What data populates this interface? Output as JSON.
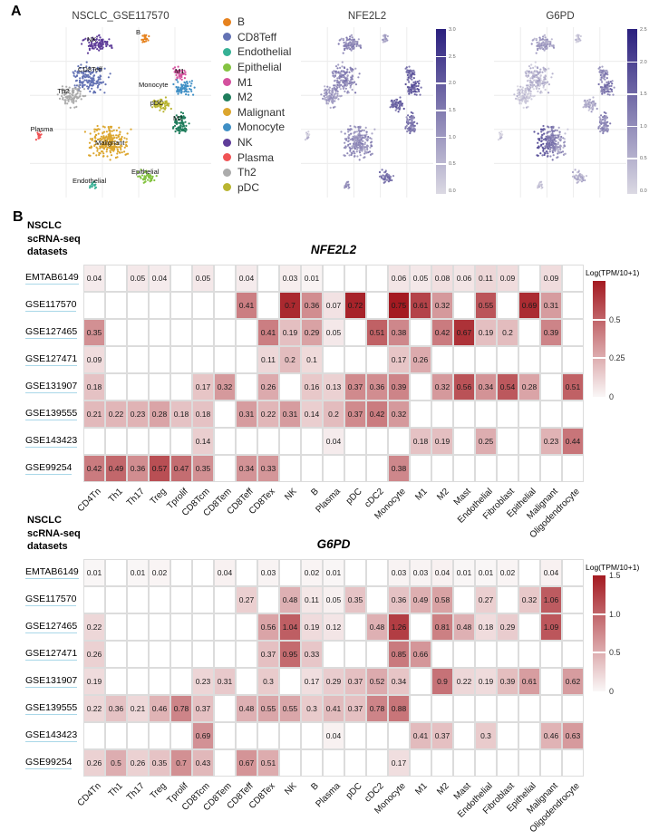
{
  "figure": {
    "panel_a_label": "A",
    "panel_b_label": "B",
    "datasets_note_lines": [
      "NSCLC",
      "scRNA-seq",
      "datasets"
    ]
  },
  "umap_expr_scale": {
    "low": "#dbd9e3",
    "high": "#2a1f7e"
  },
  "heatmap_scale": {
    "low": "#faf7f7",
    "high": "#a41a21"
  },
  "chart_data": [
    {
      "type": "scatter",
      "subtype": "umap-clusters",
      "title": "NSCLC_GSE117570",
      "legend_position": "right",
      "clusters": [
        {
          "name": "B",
          "color": "#e6821e",
          "cx": 0.635,
          "cy": 0.06,
          "rx": 0.032,
          "ry": 0.04,
          "n": 22,
          "label_x": 0.585,
          "label_y": 0.005,
          "nfe2l2": 0.3,
          "g6pd": 0.12
        },
        {
          "name": "CD8Teff",
          "color": "#6372b4",
          "cx": 0.335,
          "cy": 0.3,
          "rx": 0.125,
          "ry": 0.115,
          "n": 150,
          "label_x": 0.265,
          "label_y": 0.225,
          "nfe2l2": 0.42,
          "g6pd": 0.18
        },
        {
          "name": "Endothelial",
          "color": "#36b195",
          "cx": 0.36,
          "cy": 0.925,
          "rx": 0.045,
          "ry": 0.028,
          "n": 15,
          "label_x": 0.235,
          "label_y": 0.88,
          "nfe2l2": 0.4,
          "g6pd": 0.12
        },
        {
          "name": "Epithelial",
          "color": "#84c341",
          "cx": 0.645,
          "cy": 0.875,
          "rx": 0.07,
          "ry": 0.05,
          "n": 48,
          "label_x": 0.56,
          "label_y": 0.822,
          "nfe2l2": 0.55,
          "g6pd": 0.22
        },
        {
          "name": "M1",
          "color": "#d4519e",
          "cx": 0.825,
          "cy": 0.27,
          "rx": 0.05,
          "ry": 0.055,
          "n": 42,
          "label_x": 0.8,
          "label_y": 0.232,
          "nfe2l2": 0.6,
          "g6pd": 0.42
        },
        {
          "name": "M2",
          "color": "#1f7d5c",
          "cx": 0.83,
          "cy": 0.565,
          "rx": 0.06,
          "ry": 0.1,
          "n": 75,
          "label_x": 0.79,
          "label_y": 0.508,
          "nfe2l2": 0.5,
          "g6pd": 0.4
        },
        {
          "name": "Malignant",
          "color": "#dca62e",
          "cx": 0.43,
          "cy": 0.675,
          "rx": 0.16,
          "ry": 0.125,
          "n": 230,
          "label_x": 0.36,
          "label_y": 0.652,
          "nfe2l2": 0.38,
          "g6pd": 0.5
        },
        {
          "name": "Monocyte",
          "color": "#3f8fc5",
          "cx": 0.85,
          "cy": 0.36,
          "rx": 0.075,
          "ry": 0.065,
          "n": 65,
          "label_x": 0.6,
          "label_y": 0.315,
          "nfe2l2": 0.66,
          "g6pd": 0.5
        },
        {
          "name": "NK",
          "color": "#5f3d99",
          "cx": 0.37,
          "cy": 0.1,
          "rx": 0.115,
          "ry": 0.062,
          "n": 85,
          "label_x": 0.315,
          "label_y": 0.05,
          "nfe2l2": 0.4,
          "g6pd": 0.28
        },
        {
          "name": "Plasma",
          "color": "#f05355",
          "cx": 0.045,
          "cy": 0.64,
          "rx": 0.025,
          "ry": 0.05,
          "n": 16,
          "label_x": 0.003,
          "label_y": 0.572,
          "nfe2l2": 0.15,
          "g6pd": 0.08
        },
        {
          "name": "Th2",
          "color": "#ababab",
          "cx": 0.225,
          "cy": 0.4,
          "rx": 0.105,
          "ry": 0.085,
          "n": 105,
          "label_x": 0.152,
          "label_y": 0.352,
          "nfe2l2": 0.33,
          "g6pd": 0.1
        },
        {
          "name": "pDC",
          "color": "#b9b531",
          "cx": 0.725,
          "cy": 0.46,
          "rx": 0.07,
          "ry": 0.06,
          "n": 58,
          "label_x": 0.663,
          "label_y": 0.422,
          "nfe2l2": 0.6,
          "g6pd": 0.22
        }
      ]
    },
    {
      "type": "scatter",
      "subtype": "umap-expression",
      "title": "NFE2L2",
      "value_key": "nfe2l2",
      "colorbar_ticks": [
        "3.0",
        "2.5",
        "2.0",
        "1.5",
        "1.0",
        "0.5",
        "0.0"
      ]
    },
    {
      "type": "scatter",
      "subtype": "umap-expression",
      "title": "G6PD",
      "value_key": "g6pd",
      "colorbar_ticks": [
        "2.5",
        "2.0",
        "1.5",
        "1.0",
        "0.5",
        "0.0"
      ]
    },
    {
      "type": "heatmap",
      "title": "NFE2L2",
      "legend_title": "Log(TPM/10+1)",
      "scale_max": 0.75,
      "colorbar_ticks": [
        {
          "value": 0.5,
          "label": "0.5"
        },
        {
          "value": 0.25,
          "label": "0.25"
        },
        {
          "value": 0,
          "label": "0"
        }
      ],
      "rows": [
        "EMTAB6149",
        "GSE117570",
        "GSE127465",
        "GSE127471",
        "GSE131907",
        "GSE139555",
        "GSE143423",
        "GSE99254"
      ],
      "columns": [
        "CD4Tn",
        "Th1",
        "Th17",
        "Treg",
        "Tprolif",
        "CD8Tcm",
        "CD8Tem",
        "CD8Teff",
        "CD8Tex",
        "NK",
        "B",
        "Plasma",
        "pDC",
        "cDC2",
        "Monocyte",
        "M1",
        "M2",
        "Mast",
        "Endothelial",
        "Fibroblast",
        "Epithelial",
        "Malignant",
        "Oligodendrocyte"
      ],
      "values": [
        [
          0.04,
          null,
          0.05,
          0.04,
          null,
          0.05,
          null,
          0.04,
          null,
          0.03,
          0.01,
          null,
          null,
          null,
          0.06,
          0.05,
          0.08,
          0.06,
          0.11,
          0.09,
          null,
          0.09,
          null
        ],
        [
          null,
          null,
          null,
          null,
          null,
          null,
          null,
          0.41,
          null,
          0.7,
          0.36,
          0.07,
          0.72,
          null,
          0.75,
          0.61,
          0.32,
          null,
          0.55,
          null,
          0.69,
          0.31,
          null
        ],
        [
          0.35,
          null,
          null,
          null,
          null,
          null,
          null,
          null,
          0.41,
          0.19,
          0.29,
          0.05,
          null,
          0.51,
          0.38,
          null,
          0.42,
          0.67,
          0.19,
          0.2,
          null,
          0.39,
          null
        ],
        [
          0.09,
          null,
          null,
          null,
          null,
          null,
          null,
          null,
          0.11,
          0.2,
          0.1,
          null,
          null,
          null,
          0.17,
          0.26,
          null,
          null,
          null,
          null,
          null,
          null,
          null
        ],
        [
          0.18,
          null,
          null,
          null,
          null,
          0.17,
          0.32,
          null,
          0.26,
          null,
          0.16,
          0.13,
          0.37,
          0.36,
          0.39,
          null,
          0.32,
          0.56,
          0.34,
          0.54,
          0.28,
          null,
          0.51
        ],
        [
          0.21,
          0.22,
          0.23,
          0.28,
          0.18,
          0.18,
          null,
          0.31,
          0.22,
          0.31,
          0.14,
          0.2,
          0.37,
          0.42,
          0.32,
          null,
          null,
          null,
          null,
          null,
          null,
          null,
          null
        ],
        [
          null,
          null,
          null,
          null,
          null,
          0.14,
          null,
          null,
          null,
          null,
          null,
          0.04,
          null,
          null,
          null,
          0.18,
          0.19,
          null,
          0.25,
          null,
          null,
          0.23,
          0.44
        ],
        [
          0.42,
          0.49,
          0.36,
          0.57,
          0.47,
          0.35,
          null,
          0.34,
          0.33,
          null,
          null,
          null,
          null,
          null,
          0.38,
          null,
          null,
          null,
          null,
          null,
          null,
          null,
          null
        ]
      ]
    },
    {
      "type": "heatmap",
      "title": "G6PD",
      "legend_title": "Log(TPM/10+1)",
      "scale_max": 1.5,
      "colorbar_ticks": [
        {
          "value": 1.5,
          "label": "1.5"
        },
        {
          "value": 1.0,
          "label": "1.0"
        },
        {
          "value": 0.5,
          "label": "0.5"
        },
        {
          "value": 0,
          "label": "0"
        }
      ],
      "rows": [
        "EMTAB6149",
        "GSE117570",
        "GSE127465",
        "GSE127471",
        "GSE131907",
        "GSE139555",
        "GSE143423",
        "GSE99254"
      ],
      "columns": [
        "CD4Tn",
        "Th1",
        "Th17",
        "Treg",
        "Tprolif",
        "CD8Tcm",
        "CD8Tem",
        "CD8Teff",
        "CD8Tex",
        "NK",
        "B",
        "Plasma",
        "pDC",
        "cDC2",
        "Monocyte",
        "M1",
        "M2",
        "Mast",
        "Endothelial",
        "Fibroblast",
        "Epithelial",
        "Malignant",
        "Oligodendrocyte"
      ],
      "values": [
        [
          0.01,
          null,
          0.01,
          0.02,
          null,
          null,
          0.04,
          null,
          0.03,
          null,
          0.02,
          0.01,
          null,
          null,
          0.03,
          0.03,
          0.04,
          0.01,
          0.01,
          0.02,
          null,
          0.04,
          null
        ],
        [
          null,
          null,
          null,
          null,
          null,
          null,
          null,
          0.27,
          null,
          0.48,
          0.11,
          0.05,
          0.35,
          null,
          0.36,
          0.49,
          0.58,
          null,
          0.27,
          null,
          0.32,
          1.06,
          null
        ],
        [
          0.22,
          null,
          null,
          null,
          null,
          null,
          null,
          null,
          0.56,
          1.04,
          0.19,
          0.12,
          null,
          0.48,
          1.26,
          null,
          0.81,
          0.48,
          0.18,
          0.29,
          null,
          1.09,
          null
        ],
        [
          0.26,
          null,
          null,
          null,
          null,
          null,
          null,
          null,
          0.37,
          0.95,
          0.33,
          null,
          null,
          null,
          0.85,
          0.66,
          null,
          null,
          null,
          null,
          null,
          null,
          null
        ],
        [
          0.19,
          null,
          null,
          null,
          null,
          0.23,
          0.31,
          null,
          0.3,
          null,
          0.17,
          0.29,
          0.37,
          0.52,
          0.34,
          null,
          0.9,
          0.22,
          0.19,
          0.39,
          0.61,
          null,
          0.62
        ],
        [
          0.22,
          0.36,
          0.21,
          0.46,
          0.78,
          0.37,
          null,
          0.48,
          0.55,
          0.55,
          0.3,
          0.41,
          0.37,
          0.78,
          0.88,
          null,
          null,
          null,
          null,
          null,
          null,
          null,
          null
        ],
        [
          null,
          null,
          null,
          null,
          null,
          0.69,
          null,
          null,
          null,
          null,
          null,
          0.04,
          null,
          null,
          null,
          0.41,
          0.37,
          null,
          0.3,
          null,
          null,
          0.46,
          0.63
        ],
        [
          0.26,
          0.5,
          0.26,
          0.35,
          0.7,
          0.43,
          null,
          0.67,
          0.51,
          null,
          null,
          null,
          null,
          null,
          0.17,
          null,
          null,
          null,
          null,
          null,
          null,
          null,
          null
        ]
      ]
    }
  ]
}
